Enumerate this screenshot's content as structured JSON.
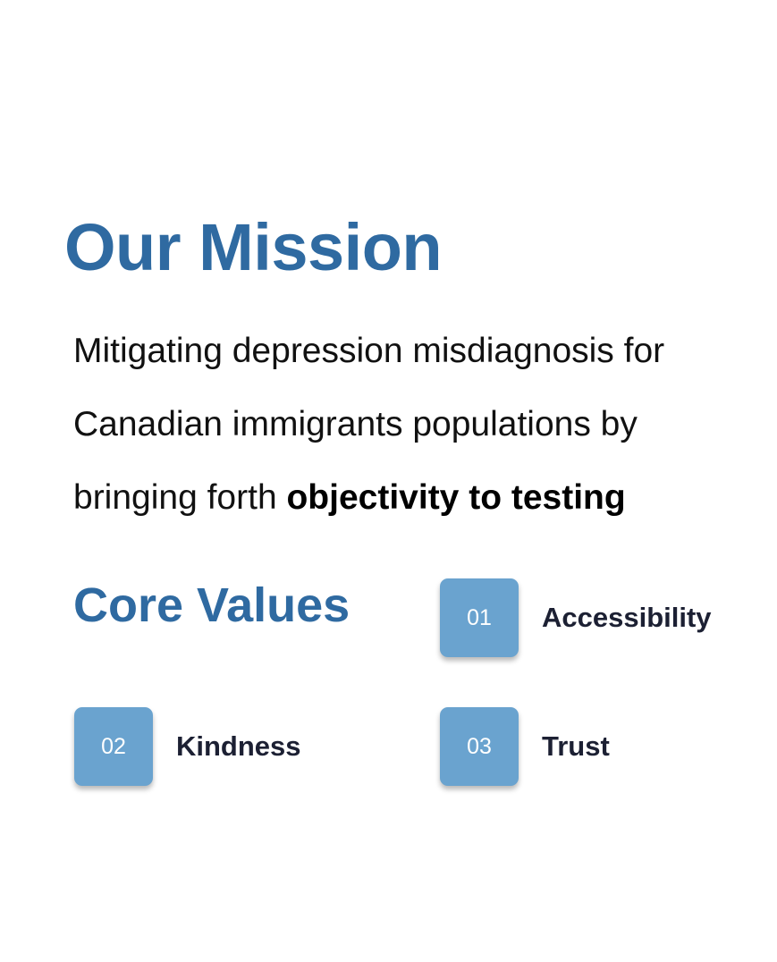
{
  "mission": {
    "title": "Our Mission",
    "text_before": "Mitigating depression misdiagnosis for Canadian immigrants populations by bringing forth ",
    "text_bold": "objectivity to testing"
  },
  "core_values": {
    "title": "Core Values",
    "items": [
      {
        "number": "01",
        "label": "Accessibility"
      },
      {
        "number": "02",
        "label": "Kindness"
      },
      {
        "number": "03",
        "label": "Trust"
      }
    ]
  },
  "colors": {
    "heading": "#2f6aa1",
    "badge": "#6aa3cf",
    "label": "#1c2033"
  }
}
